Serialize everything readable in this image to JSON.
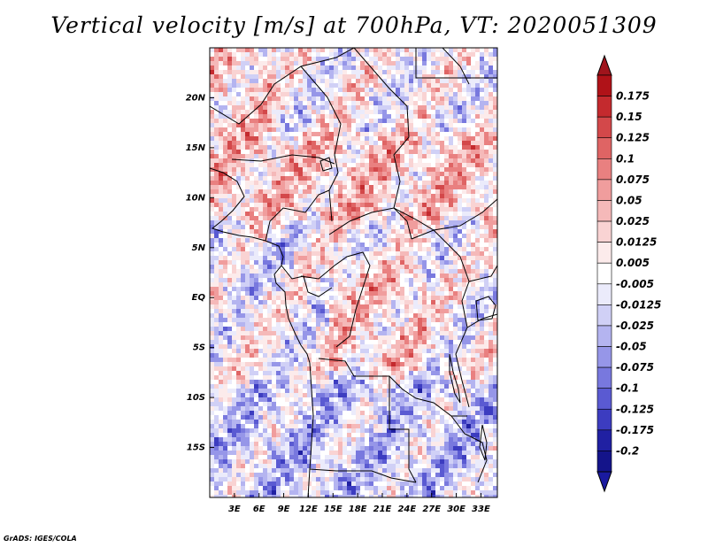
{
  "title": "Vertical velocity [m/s] at 700hPa, VT: 2020051309",
  "credit": "GrADS: IGES/COLA",
  "map": {
    "lat_range": [
      -20,
      25
    ],
    "lon_range": [
      0,
      35
    ],
    "lat_labels": [
      "20N",
      "15N",
      "10N",
      "5N",
      "EQ",
      "5S",
      "10S",
      "15S"
    ],
    "lat_values": [
      20,
      15,
      10,
      5,
      0,
      -5,
      -10,
      -15
    ],
    "lon_labels": [
      "3E",
      "6E",
      "9E",
      "12E",
      "15E",
      "18E",
      "21E",
      "24E",
      "27E",
      "30E",
      "33E"
    ],
    "lon_values": [
      3,
      6,
      9,
      12,
      15,
      18,
      21,
      24,
      27,
      30,
      33
    ]
  },
  "colorbar": {
    "labels": [
      "0.175",
      "0.15",
      "0.125",
      "0.1",
      "0.075",
      "0.05",
      "0.025",
      "0.0125",
      "0.005",
      "-0.005",
      "-0.0125",
      "-0.025",
      "-0.05",
      "-0.075",
      "-0.1",
      "-0.125",
      "-0.175",
      "-0.2"
    ],
    "colors": [
      "#b01218",
      "#c42a2e",
      "#d3484a",
      "#df6464",
      "#e98080",
      "#f09d9d",
      "#f5b9b9",
      "#f9d3d3",
      "#fcebeb",
      "#ffffff",
      "#ebebfb",
      "#d0d0f6",
      "#b4b4f0",
      "#9696e8",
      "#7878de",
      "#5a5ad2",
      "#3c3cc0",
      "#2020a2",
      "#14148a"
    ],
    "top_color": "#a0141c",
    "bottom_color": "#1a1aa0"
  }
}
